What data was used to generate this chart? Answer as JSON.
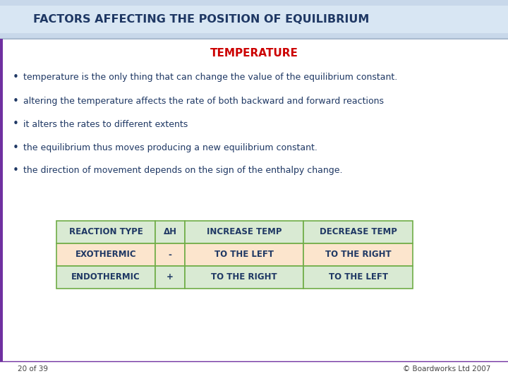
{
  "title": "FACTORS AFFECTING THE POSITION OF EQUILIBRIUM",
  "subtitle": "TEMPERATURE",
  "bg_color": "#ffffff",
  "header_bg_top": "#c5d5e8",
  "header_bg_mid": "#dce6f1",
  "header_text_color": "#1f3864",
  "subtitle_color": "#cc0000",
  "bullet_color": "#1f3864",
  "bullets": [
    "temperature is the only thing that can change the value of the equilibrium constant.",
    "altering the temperature affects the rate of both backward and forward reactions",
    "it alters the rates to different extents",
    "the equilibrium thus moves producing a new equilibrium constant.",
    "the direction of movement depends on the sign of the enthalpy change."
  ],
  "table_header_bg": "#d9ead3",
  "table_exo_bg": "#fce5cd",
  "table_endo_bg": "#d9ead3",
  "table_border": "#70ad47",
  "table_text_color": "#1f3864",
  "table_cols": [
    "REACTION TYPE",
    "ΔH",
    "INCREASE TEMP",
    "DECREASE TEMP"
  ],
  "table_rows": [
    [
      "EXOTHERMIC",
      "-",
      "TO THE LEFT",
      "TO THE RIGHT"
    ],
    [
      "ENDOTHERMIC",
      "+",
      "TO THE RIGHT",
      "TO THE LEFT"
    ]
  ],
  "footer_text": "20 of 39",
  "footer_right": "© Boardworks Ltd 2007",
  "title_fontsize": 11.5,
  "subtitle_fontsize": 11,
  "bullet_fontsize": 9,
  "table_fontsize": 8.5,
  "footer_fontsize": 7.5
}
